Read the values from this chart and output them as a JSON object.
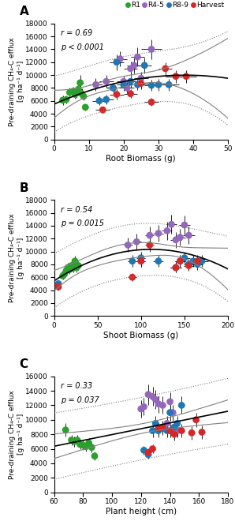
{
  "panel_A": {
    "label": "A",
    "xlabel": "Root Biomass (g)",
    "xlim": [
      0,
      50
    ],
    "xticks": [
      0,
      10,
      20,
      30,
      40,
      50
    ],
    "ylim": [
      0,
      18000
    ],
    "yticks": [
      0,
      2000,
      4000,
      6000,
      8000,
      10000,
      12000,
      14000,
      16000,
      18000
    ],
    "r_text": "r = 0.69",
    "p_text": "p < 0.0001",
    "poly_deg": 2,
    "data": {
      "R1": {
        "color": "#2ca02c",
        "x": [
          2.5,
          3.5,
          4.5,
          5.5,
          6.0,
          6.5,
          7.0,
          7.5,
          8.0,
          8.5,
          9.0
        ],
        "y": [
          6100,
          6200,
          7300,
          7500,
          7000,
          7200,
          7800,
          8800,
          7100,
          6700,
          5000
        ],
        "xerr": [
          0.5,
          0.5,
          0.5,
          0.8,
          0.8,
          0.8,
          1.0,
          1.0,
          0.8,
          0.8,
          0.8
        ],
        "yerr": [
          700,
          600,
          800,
          700,
          700,
          700,
          700,
          1200,
          800,
          600,
          500
        ]
      },
      "R4-5": {
        "color": "#9467bd",
        "x": [
          12,
          15,
          17,
          19,
          20,
          21,
          22,
          23,
          24,
          25,
          28
        ],
        "y": [
          8500,
          9000,
          8000,
          12500,
          9000,
          8000,
          11000,
          11500,
          12800,
          9500,
          14000
        ],
        "xerr": [
          2,
          2,
          2,
          2,
          2,
          2,
          2,
          2,
          2,
          2,
          3
        ],
        "yerr": [
          1000,
          1000,
          800,
          1200,
          900,
          900,
          1100,
          1200,
          1500,
          1000,
          1500
        ]
      },
      "R8-9": {
        "color": "#1f77b4",
        "x": [
          13,
          15,
          17,
          18,
          20,
          22,
          24,
          26,
          28,
          30,
          33
        ],
        "y": [
          6000,
          6200,
          8000,
          12000,
          8500,
          9000,
          8500,
          11500,
          8400,
          8500,
          8500
        ],
        "xerr": [
          2,
          2,
          2,
          2,
          2,
          2,
          2,
          2,
          2,
          3,
          3
        ],
        "yerr": [
          700,
          700,
          800,
          1200,
          900,
          900,
          800,
          1200,
          900,
          900,
          900
        ]
      },
      "Harvest": {
        "color": "#d62728",
        "x": [
          14,
          18,
          22,
          25,
          28,
          32,
          35,
          38
        ],
        "y": [
          4600,
          7000,
          7100,
          8700,
          5800,
          11000,
          9800,
          9800
        ],
        "xerr": [
          2,
          2,
          2,
          2,
          2,
          2,
          3,
          3
        ],
        "yerr": [
          500,
          800,
          700,
          900,
          600,
          1000,
          1000,
          1000
        ]
      }
    }
  },
  "panel_B": {
    "label": "B",
    "xlabel": "Shoot Biomass (g)",
    "xlim": [
      0,
      200
    ],
    "xticks": [
      0,
      50,
      100,
      150,
      200
    ],
    "ylim": [
      0,
      18000
    ],
    "yticks": [
      0,
      2000,
      4000,
      6000,
      8000,
      10000,
      12000,
      14000,
      16000,
      18000
    ],
    "r_text": "r = 0.54",
    "p_text": "p = 0.0015",
    "poly_deg": 2,
    "data": {
      "R1": {
        "color": "#2ca02c",
        "x": [
          10,
          12,
          14,
          16,
          18,
          20,
          22,
          24,
          26,
          28
        ],
        "y": [
          6200,
          6500,
          7000,
          7500,
          7200,
          7800,
          7400,
          8500,
          7500,
          7800
        ],
        "xerr": [
          1,
          1,
          1,
          1,
          1,
          1,
          1,
          1,
          1,
          1
        ],
        "yerr": [
          600,
          600,
          700,
          700,
          700,
          700,
          700,
          800,
          700,
          700
        ]
      },
      "R4-5": {
        "color": "#9467bd",
        "x": [
          85,
          95,
          100,
          110,
          120,
          130,
          135,
          140,
          145,
          150,
          155
        ],
        "y": [
          11000,
          11500,
          8500,
          12500,
          12800,
          13200,
          14200,
          11800,
          12200,
          14100,
          12500
        ],
        "xerr": [
          5,
          5,
          5,
          5,
          6,
          6,
          6,
          6,
          6,
          6,
          7
        ],
        "yerr": [
          1100,
          1200,
          900,
          1300,
          1300,
          1400,
          1500,
          1200,
          1300,
          1500,
          1300
        ]
      },
      "R8-9": {
        "color": "#1f77b4",
        "x": [
          5,
          90,
          100,
          120,
          140,
          145,
          150,
          155,
          160,
          165,
          170
        ],
        "y": [
          5000,
          8500,
          9000,
          8500,
          7500,
          8500,
          9000,
          8000,
          8500,
          8000,
          8500
        ],
        "xerr": [
          1,
          5,
          5,
          6,
          6,
          6,
          6,
          6,
          6,
          6,
          7
        ],
        "yerr": [
          500,
          900,
          900,
          900,
          800,
          900,
          900,
          900,
          900,
          900,
          900
        ]
      },
      "Harvest": {
        "color": "#d62728",
        "x": [
          5,
          90,
          100,
          110,
          140,
          145,
          155,
          165
        ],
        "y": [
          4500,
          6000,
          8500,
          11000,
          7500,
          8500,
          7800,
          8500
        ],
        "xerr": [
          1,
          5,
          5,
          5,
          6,
          6,
          6,
          7
        ],
        "yerr": [
          500,
          600,
          900,
          1100,
          800,
          900,
          800,
          900
        ]
      }
    }
  },
  "panel_C": {
    "label": "C",
    "xlabel": "Plant height (cm)",
    "xlim": [
      60,
      180
    ],
    "xticks": [
      60,
      80,
      100,
      120,
      140,
      160,
      180
    ],
    "ylim": [
      0,
      16000
    ],
    "yticks": [
      0,
      2000,
      4000,
      6000,
      8000,
      10000,
      12000,
      14000,
      16000
    ],
    "r_text": "r = 0.33",
    "p_text": "p = 0.037",
    "poly_deg": 1,
    "data": {
      "R1": {
        "color": "#2ca02c",
        "x": [
          68,
          72,
          74,
          76,
          78,
          80,
          82,
          84,
          86,
          88
        ],
        "y": [
          8600,
          7200,
          7000,
          7200,
          6600,
          6500,
          6300,
          6800,
          6200,
          5000
        ],
        "xerr": [
          1,
          1,
          1,
          1,
          1,
          1,
          1,
          1,
          1,
          1
        ],
        "yerr": [
          900,
          700,
          700,
          700,
          700,
          700,
          700,
          700,
          700,
          600
        ]
      },
      "R4-5": {
        "color": "#9467bd",
        "x": [
          120,
          122,
          125,
          128,
          130,
          132,
          135,
          138,
          140,
          142,
          145
        ],
        "y": [
          11500,
          11800,
          13500,
          13200,
          12800,
          12200,
          12000,
          9500,
          12500,
          11000,
          8500
        ],
        "xerr": [
          2,
          2,
          2,
          2,
          2,
          2,
          2,
          2,
          2,
          2,
          2
        ],
        "yerr": [
          1200,
          1200,
          1400,
          1300,
          1300,
          1200,
          1200,
          1000,
          1300,
          1100,
          900
        ]
      },
      "R8-9": {
        "color": "#1f77b4",
        "x": [
          122,
          125,
          128,
          130,
          132,
          135,
          138,
          140,
          143,
          145,
          148
        ],
        "y": [
          5800,
          5200,
          8500,
          9500,
          8500,
          8800,
          8500,
          11000,
          9000,
          9500,
          12000
        ],
        "xerr": [
          2,
          2,
          2,
          2,
          2,
          2,
          2,
          2,
          2,
          2,
          2
        ],
        "yerr": [
          600,
          600,
          900,
          1000,
          900,
          900,
          900,
          1100,
          900,
          1000,
          1200
        ]
      },
      "Harvest": {
        "color": "#d62728",
        "x": [
          125,
          128,
          132,
          135,
          140,
          143,
          148,
          155,
          158,
          162
        ],
        "y": [
          5500,
          6000,
          8800,
          9000,
          8500,
          8000,
          8500,
          8200,
          10000,
          8300
        ],
        "xerr": [
          2,
          2,
          2,
          2,
          2,
          2,
          2,
          2,
          2,
          2
        ],
        "yerr": [
          600,
          600,
          900,
          900,
          900,
          800,
          900,
          900,
          1000,
          900
        ]
      }
    }
  },
  "legend_labels": [
    "R1",
    "R4-5",
    "R8-9",
    "Harvest"
  ],
  "legend_colors": [
    "#2ca02c",
    "#9467bd",
    "#1f77b4",
    "#d62728"
  ],
  "ylabel": "Pre-draining CH₄-C efflux\n[g ha⁻¹ d⁻¹]",
  "dot_size": 40,
  "regression_color": "black",
  "confidence_color": "#808080",
  "prediction_color": "#808080"
}
